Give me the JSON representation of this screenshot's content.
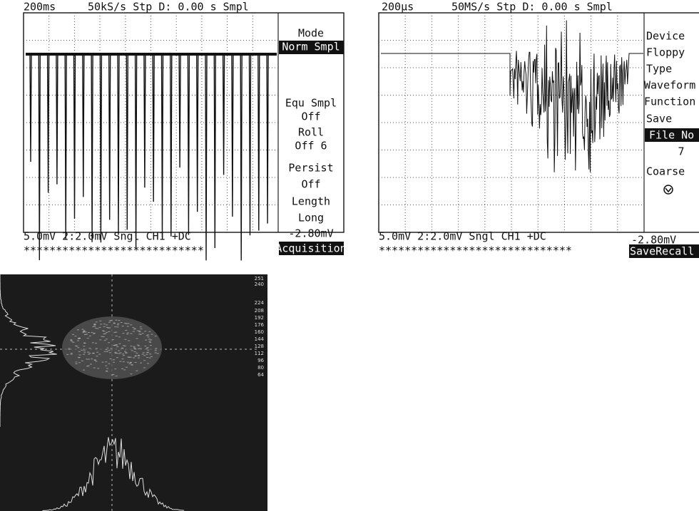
{
  "scope_1": {
    "header": {
      "timebase": "200ms",
      "status": "50kS/s Stp D: 0.00 s Smpl"
    },
    "menu": [
      "Mode",
      "Norm Smpl",
      "Equ Smpl",
      "Off",
      "Roll",
      "Off 6",
      "Persist",
      "Off",
      "Length",
      "Long"
    ],
    "offset": "-2.80mV",
    "menu_title": "Acquisition",
    "footer": "5.0mV  2:2.0mV  Sngl CH1 +DC",
    "stars": "****************************"
  },
  "scope_2": {
    "header": {
      "timebase": "200µs",
      "status": "50MS/s Stp D: 0.00 s Smpl"
    },
    "menu": [
      "Device",
      "Floppy",
      "Type",
      "Waveform",
      "Function",
      "Save",
      "File No",
      "7",
      "Coarse"
    ],
    "offset": "-2.80mV",
    "menu_title": "SaveRecall",
    "footer": "5.0mV  2:2.0mV  Sngl CH1 +DC",
    "stars": "******************************"
  },
  "image": {
    "scale_labels": [
      "251",
      "240",
      "224",
      "208",
      "192",
      "176",
      "160",
      "144",
      "128",
      "112",
      "96",
      "80",
      "64"
    ]
  }
}
